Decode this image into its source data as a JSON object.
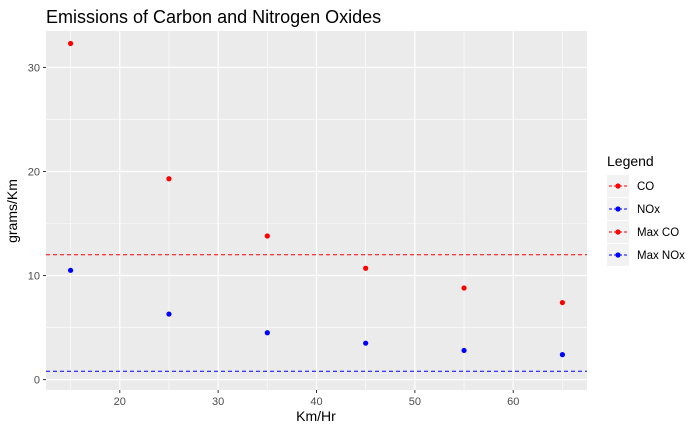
{
  "chart_data": {
    "type": "scatter",
    "title": "Emissions of Carbon and Nitrogen Oxides",
    "xlabel": "Km/Hr",
    "ylabel": "grams/Km",
    "xlim": [
      12.5,
      67.5
    ],
    "ylim": [
      -1,
      33.5
    ],
    "x_ticks": [
      20,
      30,
      40,
      50,
      60
    ],
    "y_ticks": [
      0,
      10,
      20,
      30
    ],
    "grid": true,
    "legend_title": "Legend",
    "legend_position": "right",
    "series": [
      {
        "name": "CO",
        "color": "#ff0000",
        "kind": "points",
        "x": [
          15,
          25,
          35,
          45,
          55,
          65
        ],
        "y": [
          32.3,
          19.3,
          13.8,
          10.7,
          8.8,
          7.4
        ]
      },
      {
        "name": "NOx",
        "color": "#0000ff",
        "kind": "points",
        "x": [
          15,
          25,
          35,
          45,
          55,
          65
        ],
        "y": [
          10.5,
          6.3,
          4.5,
          3.5,
          2.8,
          2.4
        ]
      },
      {
        "name": "Max CO",
        "color": "#ff0000",
        "kind": "hline",
        "y": 12
      },
      {
        "name": "Max NOx",
        "color": "#0000ff",
        "kind": "hline",
        "y": 0.8
      }
    ]
  }
}
